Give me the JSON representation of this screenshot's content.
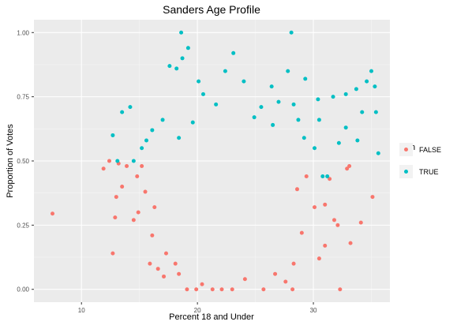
{
  "chart_data": {
    "type": "scatter",
    "title": "Sanders Age Profile",
    "xlabel": "Percent 18 and Under",
    "ylabel": "Proportion of Votes",
    "xlim": [
      5.9,
      36.6
    ],
    "ylim": [
      -0.05,
      1.05
    ],
    "x_ticks": [
      10,
      20,
      30
    ],
    "y_ticks": [
      0.0,
      0.25,
      0.5,
      0.75,
      1.0
    ],
    "x_tick_labels": [
      "10",
      "20",
      "30"
    ],
    "y_tick_labels": [
      "0.00",
      "0.25",
      "0.50",
      "0.75",
      "1.00"
    ],
    "grid": true,
    "legend": {
      "title": "won",
      "position": "right",
      "entries": [
        {
          "label": "FALSE",
          "color": "#F8766D"
        },
        {
          "label": "TRUE",
          "color": "#00BFC4"
        }
      ]
    },
    "colors": {
      "FALSE": "#F8766D",
      "TRUE": "#00BFC4"
    },
    "series": [
      {
        "name": "FALSE",
        "points": [
          [
            7.5,
            0.295
          ],
          [
            11.9,
            0.47
          ],
          [
            12.4,
            0.5
          ],
          [
            13.2,
            0.49
          ],
          [
            13.0,
            0.36
          ],
          [
            12.9,
            0.28
          ],
          [
            12.7,
            0.14
          ],
          [
            13.9,
            0.48
          ],
          [
            15.2,
            0.48
          ],
          [
            14.9,
            0.3
          ],
          [
            15.9,
            0.1
          ],
          [
            16.6,
            0.08
          ],
          [
            17.1,
            0.05
          ],
          [
            18.1,
            0.1
          ],
          [
            19.1,
            0.0
          ],
          [
            19.9,
            0.0
          ],
          [
            21.3,
            0.0
          ],
          [
            22.1,
            0.0
          ],
          [
            23.0,
            0.0
          ],
          [
            25.7,
            0.0
          ],
          [
            28.2,
            0.0
          ],
          [
            32.3,
            0.0
          ],
          [
            30.1,
            0.32
          ],
          [
            31.0,
            0.33
          ],
          [
            32.1,
            0.25
          ],
          [
            33.2,
            0.18
          ],
          [
            33.1,
            0.48
          ],
          [
            35.1,
            0.36
          ],
          [
            34.1,
            0.26
          ],
          [
            32.9,
            0.47
          ],
          [
            31.4,
            0.43
          ],
          [
            31.0,
            0.17
          ],
          [
            30.5,
            0.12
          ],
          [
            31.8,
            0.27
          ],
          [
            29.4,
            0.44
          ],
          [
            29.0,
            0.22
          ],
          [
            28.6,
            0.39
          ],
          [
            14.5,
            0.27
          ],
          [
            15.5,
            0.38
          ],
          [
            16.1,
            0.21
          ],
          [
            13.5,
            0.4
          ],
          [
            14.8,
            0.44
          ],
          [
            16.3,
            0.32
          ],
          [
            17.3,
            0.14
          ],
          [
            18.4,
            0.06
          ],
          [
            20.4,
            0.02
          ],
          [
            24.1,
            0.04
          ],
          [
            26.7,
            0.06
          ],
          [
            27.6,
            0.03
          ],
          [
            28.3,
            0.1
          ]
        ]
      },
      {
        "name": "TRUE",
        "points": [
          [
            18.6,
            1.0
          ],
          [
            28.1,
            1.0
          ],
          [
            13.5,
            0.69
          ],
          [
            14.2,
            0.71
          ],
          [
            12.7,
            0.6
          ],
          [
            13.1,
            0.5
          ],
          [
            14.5,
            0.5
          ],
          [
            16.1,
            0.62
          ],
          [
            17.6,
            0.87
          ],
          [
            18.2,
            0.86
          ],
          [
            18.7,
            0.9
          ],
          [
            19.2,
            0.94
          ],
          [
            20.1,
            0.81
          ],
          [
            22.4,
            0.85
          ],
          [
            23.1,
            0.92
          ],
          [
            24.0,
            0.81
          ],
          [
            26.4,
            0.79
          ],
          [
            27.8,
            0.85
          ],
          [
            29.3,
            0.82
          ],
          [
            30.4,
            0.74
          ],
          [
            31.7,
            0.75
          ],
          [
            32.8,
            0.76
          ],
          [
            33.7,
            0.78
          ],
          [
            34.6,
            0.81
          ],
          [
            35.0,
            0.85
          ],
          [
            35.3,
            0.79
          ],
          [
            34.2,
            0.69
          ],
          [
            35.4,
            0.69
          ],
          [
            33.8,
            0.58
          ],
          [
            32.2,
            0.57
          ],
          [
            31.2,
            0.44
          ],
          [
            30.8,
            0.44
          ],
          [
            30.1,
            0.55
          ],
          [
            30.5,
            0.66
          ],
          [
            28.7,
            0.66
          ],
          [
            28.3,
            0.72
          ],
          [
            27.0,
            0.73
          ],
          [
            25.5,
            0.71
          ],
          [
            24.9,
            0.67
          ],
          [
            20.5,
            0.76
          ],
          [
            19.6,
            0.65
          ],
          [
            18.4,
            0.59
          ],
          [
            17.0,
            0.66
          ],
          [
            15.6,
            0.58
          ],
          [
            21.6,
            0.72
          ],
          [
            26.5,
            0.64
          ],
          [
            29.2,
            0.59
          ],
          [
            35.6,
            0.53
          ],
          [
            32.8,
            0.63
          ],
          [
            15.2,
            0.55
          ]
        ]
      }
    ]
  }
}
